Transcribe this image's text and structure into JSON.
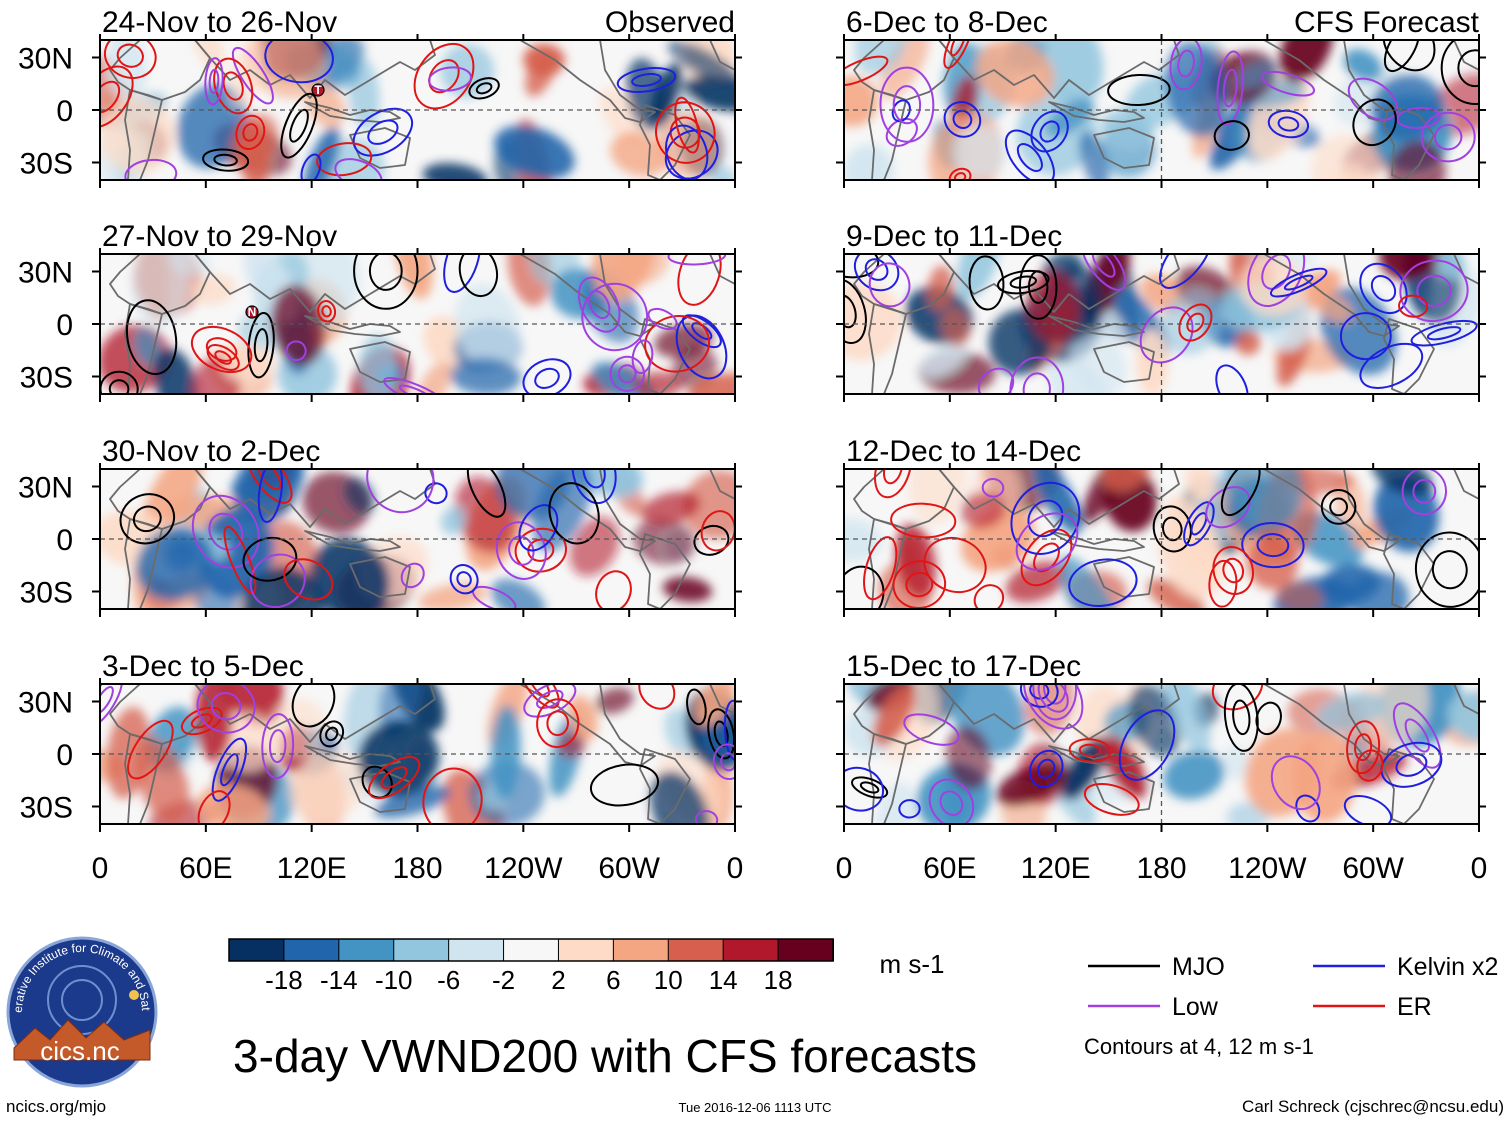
{
  "figure": {
    "main_title": "3-day VWND200 with CFS forecasts",
    "left_column_label": "Observed",
    "right_column_label": "CFS Forecast",
    "units": "m s-1",
    "contour_note": "Contours at 4, 12 m s-1",
    "site_url": "ncics.org/mjo",
    "timestamp": "Tue 2016-12-06 1113 UTC",
    "author": "Carl Schreck (cjschrec@ncsu.edu)",
    "logo_text": "cics.nc",
    "logo_ring_text": "Cooperative Institute for Climate and Satellites"
  },
  "chart_data": {
    "type": "heatmap",
    "variable": "VWND200",
    "title": "3-day VWND200 with CFS forecasts",
    "panels": [
      {
        "label": "24-Nov to 26-Nov",
        "source": "Observed",
        "storm_markers": [
          "T"
        ]
      },
      {
        "label": "27-Nov to 29-Nov",
        "source": "Observed",
        "storm_markers": [
          "N"
        ]
      },
      {
        "label": "30-Nov to 2-Dec",
        "source": "Observed",
        "storm_markers": []
      },
      {
        "label": "3-Dec to 5-Dec",
        "source": "Observed",
        "storm_markers": []
      },
      {
        "label": "6-Dec to 8-Dec",
        "source": "CFS Forecast",
        "storm_markers": []
      },
      {
        "label": "9-Dec to 11-Dec",
        "source": "CFS Forecast",
        "storm_markers": []
      },
      {
        "label": "12-Dec to 14-Dec",
        "source": "CFS Forecast",
        "storm_markers": []
      },
      {
        "label": "15-Dec to 17-Dec",
        "source": "CFS Forecast",
        "storm_markers": []
      }
    ],
    "x_ticks": [
      "0",
      "60E",
      "120E",
      "180",
      "120W",
      "60W",
      "0"
    ],
    "x_range_deg_east": [
      0,
      360
    ],
    "y_ticks": [
      "30N",
      "0",
      "30S"
    ],
    "y_range_deg": [
      -40,
      40
    ],
    "colorbar": {
      "tick_labels": [
        "-18",
        "-14",
        "-10",
        "-6",
        "-2",
        "2",
        "6",
        "10",
        "14",
        "18"
      ],
      "levels": [
        -18,
        -14,
        -10,
        -6,
        -2,
        2,
        6,
        10,
        14,
        18
      ],
      "colors": [
        "#053061",
        "#2166ac",
        "#4393c3",
        "#92c5de",
        "#d1e5f0",
        "#f7f7f7",
        "#fddbc7",
        "#f4a582",
        "#d6604d",
        "#b2182b",
        "#67001f"
      ],
      "units": "m s-1"
    },
    "legend": [
      {
        "label": "MJO",
        "color": "#000000"
      },
      {
        "label": "Kelvin x2",
        "color": "#1f1fe0"
      },
      {
        "label": "Low",
        "color": "#a040e0"
      },
      {
        "label": "ER",
        "color": "#e01515"
      }
    ],
    "contour_levels": [
      4,
      12
    ]
  }
}
